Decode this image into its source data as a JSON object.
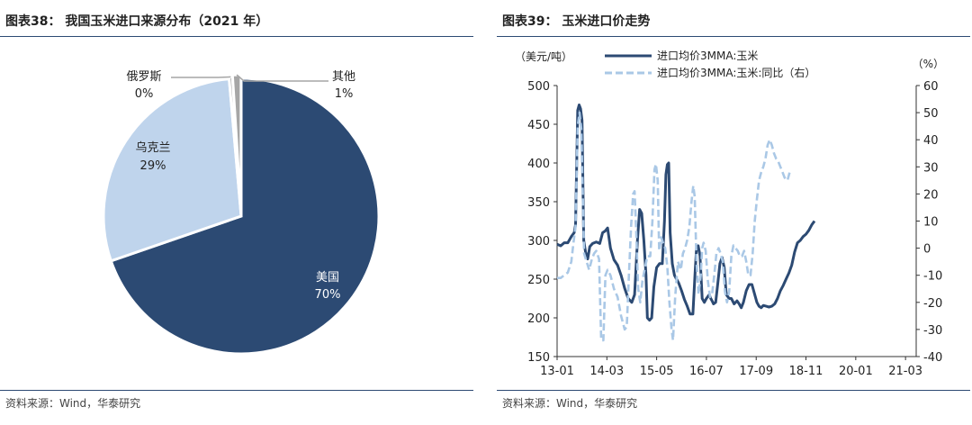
{
  "left_panel": {
    "title": "图表38：  我国玉米进口来源分布（2021 年）",
    "source": "资料来源：Wind，华泰研究"
  },
  "right_panel": {
    "title": "图表39：  玉米进口价走势",
    "source": "资料来源：Wind，华泰研究"
  },
  "colors": {
    "dark_navy": "#2c4a73",
    "light_blue": "#bfd4ec",
    "gray": "#a6a6a6",
    "dashed_blue": "#aac8e6",
    "rule": "#2d4a73"
  },
  "chart_data": [
    {
      "type": "pie",
      "title": "我国玉米进口来源分布（2021 年）",
      "slices": [
        {
          "name": "美国",
          "value": 70,
          "label": "70%",
          "color": "#2c4a73"
        },
        {
          "name": "乌克兰",
          "value": 29,
          "label": "29%",
          "color": "#bfd4ec"
        },
        {
          "name": "俄罗斯",
          "value": 0,
          "label": "0%",
          "color": "#a6a6a6"
        },
        {
          "name": "其他",
          "value": 1,
          "label": "1%",
          "color": "#a6a6a6"
        }
      ]
    },
    {
      "type": "line",
      "title": "玉米进口价走势",
      "left_unit": "（美元/吨）",
      "right_unit": "（%）",
      "x_ticks": [
        "13-01",
        "14-03",
        "15-05",
        "16-07",
        "17-09",
        "18-11",
        "20-01",
        "21-03"
      ],
      "x_range": [
        0,
        101
      ],
      "x_tick_positions": [
        0,
        14,
        28,
        42,
        56,
        70,
        84,
        98
      ],
      "ylim_left": [
        150,
        500
      ],
      "yticks_left": [
        150,
        200,
        250,
        300,
        350,
        400,
        450,
        500
      ],
      "ylim_right": [
        -40,
        60
      ],
      "yticks_right": [
        -40,
        -30,
        -20,
        -10,
        0,
        10,
        20,
        30,
        40,
        50,
        60
      ],
      "series": [
        {
          "name": "进口均价3MMA:玉米",
          "axis": "left",
          "style": "solid",
          "color": "#2c4a73",
          "points": [
            [
              0,
              295
            ],
            [
              1,
              293
            ],
            [
              2,
              297
            ],
            [
              3,
              297
            ],
            [
              4,
              305
            ],
            [
              4.8,
              310
            ],
            [
              5.2,
              320
            ],
            [
              5.8,
              468
            ],
            [
              6.2,
              475
            ],
            [
              6.6,
              470
            ],
            [
              7,
              455
            ],
            [
              7.5,
              300
            ],
            [
              8,
              285
            ],
            [
              8.6,
              276
            ],
            [
              9.2,
              292
            ],
            [
              10,
              296
            ],
            [
              11,
              298
            ],
            [
              12,
              296
            ],
            [
              12.8,
              310
            ],
            [
              13.5,
              312
            ],
            [
              14.2,
              316
            ],
            [
              15,
              290
            ],
            [
              16,
              275
            ],
            [
              17,
              268
            ],
            [
              18,
              255
            ],
            [
              19,
              238
            ],
            [
              20,
              225
            ],
            [
              21,
              220
            ],
            [
              21.8,
              230
            ],
            [
              22.6,
              300
            ],
            [
              23.2,
              340
            ],
            [
              23.8,
              335
            ],
            [
              24.4,
              300
            ],
            [
              25,
              255
            ],
            [
              25.4,
              200
            ],
            [
              26,
              197
            ],
            [
              26.6,
              200
            ],
            [
              27.2,
              240
            ],
            [
              28,
              265
            ],
            [
              28.8,
              270
            ],
            [
              29.6,
              270
            ],
            [
              30.2,
              325
            ],
            [
              30.6,
              385
            ],
            [
              31,
              398
            ],
            [
              31.4,
              400
            ],
            [
              31.8,
              310
            ],
            [
              32.4,
              270
            ],
            [
              33,
              255
            ],
            [
              33.6,
              250
            ],
            [
              34.2,
              245
            ],
            [
              35,
              235
            ],
            [
              35.8,
              224
            ],
            [
              36.6,
              215
            ],
            [
              37.4,
              205
            ],
            [
              38.2,
              205
            ],
            [
              38.8,
              258
            ],
            [
              39.2,
              290
            ],
            [
              39.7,
              293
            ],
            [
              40.2,
              280
            ],
            [
              40.8,
              225
            ],
            [
              41.4,
              220
            ],
            [
              42,
              225
            ],
            [
              42.8,
              230
            ],
            [
              43.2,
              225
            ],
            [
              43.6,
              222
            ],
            [
              44,
              218
            ],
            [
              44.6,
              220
            ],
            [
              45.2,
              245
            ],
            [
              45.8,
              270
            ],
            [
              46.4,
              278
            ],
            [
              47,
              265
            ],
            [
              47.6,
              230
            ],
            [
              48.4,
              225
            ],
            [
              49,
              225
            ],
            [
              49.8,
              218
            ],
            [
              50.6,
              222
            ],
            [
              51.2,
              218
            ],
            [
              51.8,
              213
            ],
            [
              52.4,
              220
            ],
            [
              53.2,
              235
            ],
            [
              54,
              243
            ],
            [
              54.8,
              243
            ],
            [
              55.6,
              230
            ],
            [
              56.2,
              220
            ],
            [
              56.8,
              215
            ],
            [
              57.4,
              213
            ],
            [
              58,
              216
            ],
            [
              58.8,
              215
            ],
            [
              59.6,
              214
            ],
            [
              60.4,
              215
            ],
            [
              61.2,
              218
            ],
            [
              62,
              225
            ],
            [
              62.8,
              235
            ],
            [
              63.6,
              242
            ],
            [
              64.4,
              250
            ],
            [
              65.2,
              258
            ],
            [
              66,
              268
            ],
            [
              66.8,
              285
            ],
            [
              67.6,
              297
            ],
            [
              68.4,
              300
            ],
            [
              69.2,
              305
            ],
            [
              70,
              308
            ],
            [
              70.8,
              313
            ],
            [
              71.6,
              320
            ],
            [
              72.4,
              325
            ]
          ]
        },
        {
          "name": "进口均价3MMA:玉米:同比（右）",
          "axis": "right",
          "style": "dashed",
          "color": "#aac8e6",
          "points": [
            [
              0,
              -11
            ],
            [
              1,
              -11
            ],
            [
              2,
              -10
            ],
            [
              3,
              -9
            ],
            [
              4,
              -5
            ],
            [
              4.6,
              2
            ],
            [
              5.2,
              8
            ],
            [
              5.8,
              45
            ],
            [
              6.3,
              50
            ],
            [
              6.8,
              44
            ],
            [
              7.2,
              22
            ],
            [
              7.6,
              -2
            ],
            [
              8.3,
              -5
            ],
            [
              9,
              -8
            ],
            [
              9.8,
              -4
            ],
            [
              10.4,
              -2
            ],
            [
              11,
              -1
            ],
            [
              11.8,
              -4
            ],
            [
              12.4,
              -34
            ],
            [
              13,
              -34
            ],
            [
              13.6,
              -10
            ],
            [
              14.2,
              -8
            ],
            [
              15,
              -10
            ],
            [
              16,
              -15
            ],
            [
              17,
              -18
            ],
            [
              18,
              -25
            ],
            [
              19,
              -30
            ],
            [
              19.6,
              -29
            ],
            [
              20.2,
              -10
            ],
            [
              20.8,
              8
            ],
            [
              21.4,
              20
            ],
            [
              21.8,
              21
            ],
            [
              22.2,
              8
            ],
            [
              22.8,
              -15
            ],
            [
              23.4,
              -20
            ],
            [
              24,
              -12
            ],
            [
              24.6,
              -8
            ],
            [
              25.4,
              -3
            ],
            [
              26.2,
              -3
            ],
            [
              26.8,
              10
            ],
            [
              27.4,
              29
            ],
            [
              27.8,
              31
            ],
            [
              28.3,
              25
            ],
            [
              28.7,
              -1
            ],
            [
              29.3,
              4
            ],
            [
              29.8,
              2
            ],
            [
              30.4,
              0
            ],
            [
              31,
              -7
            ],
            [
              31.6,
              -20
            ],
            [
              32.2,
              -30
            ],
            [
              32.6,
              -34
            ],
            [
              33.2,
              -18
            ],
            [
              34,
              -5
            ],
            [
              34.8,
              -8
            ],
            [
              35.4,
              -2
            ],
            [
              36,
              0
            ],
            [
              36.6,
              3
            ],
            [
              37.2,
              8
            ],
            [
              37.8,
              17
            ],
            [
              38.3,
              23
            ],
            [
              38.7,
              19
            ],
            [
              39.2,
              -5
            ],
            [
              39.8,
              -17
            ],
            [
              40.4,
              -10
            ],
            [
              40.8,
              0
            ],
            [
              41.2,
              2
            ],
            [
              41.8,
              -1
            ],
            [
              42.4,
              -12
            ],
            [
              43,
              -18
            ],
            [
              43.6,
              -17
            ],
            [
              44.2,
              -10
            ],
            [
              44.8,
              -2
            ],
            [
              45.4,
              0
            ],
            [
              46,
              -2
            ],
            [
              46.6,
              -5
            ],
            [
              47.2,
              -16
            ],
            [
              47.8,
              -20
            ],
            [
              48.4,
              -16
            ],
            [
              49,
              -3
            ],
            [
              49.6,
              1
            ],
            [
              50.2,
              0
            ],
            [
              50.8,
              -1
            ],
            [
              51.4,
              -3
            ],
            [
              52,
              -3
            ],
            [
              52.6,
              -1
            ],
            [
              53.2,
              -5
            ],
            [
              53.8,
              -10
            ],
            [
              54.4,
              -10
            ],
            [
              55,
              -2
            ],
            [
              55.6,
              10
            ],
            [
              56.2,
              18
            ],
            [
              56.8,
              25
            ],
            [
              57.4,
              28
            ],
            [
              58,
              30
            ],
            [
              58.6,
              33
            ],
            [
              59.2,
              38
            ],
            [
              59.8,
              40
            ],
            [
              60.4,
              38
            ],
            [
              61,
              35
            ],
            [
              61.6,
              33
            ],
            [
              62.2,
              32
            ],
            [
              62.8,
              30
            ],
            [
              63.4,
              28
            ],
            [
              64,
              26
            ],
            [
              64.8,
              25
            ],
            [
              65.4,
              28
            ]
          ]
        }
      ]
    }
  ]
}
